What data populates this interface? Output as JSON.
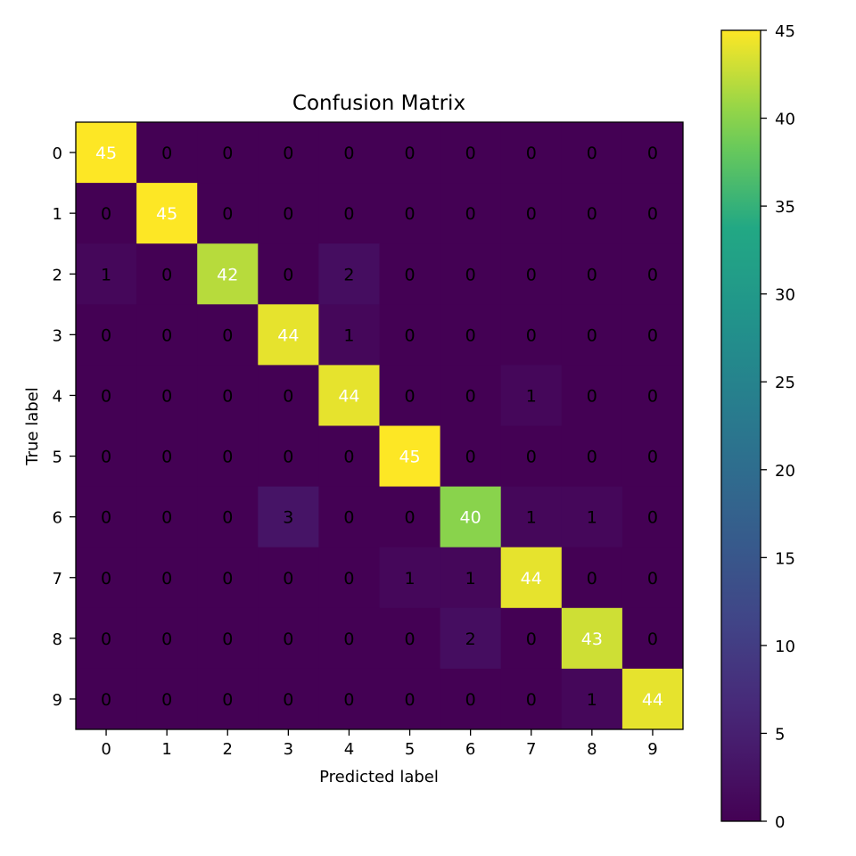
{
  "chart_data": {
    "type": "heatmap",
    "title": "Confusion Matrix",
    "xlabel": "Predicted label",
    "ylabel": "True label",
    "x_categories": [
      "0",
      "1",
      "2",
      "3",
      "4",
      "5",
      "6",
      "7",
      "8",
      "9"
    ],
    "y_categories": [
      "0",
      "1",
      "2",
      "3",
      "4",
      "5",
      "6",
      "7",
      "8",
      "9"
    ],
    "matrix": [
      [
        45,
        0,
        0,
        0,
        0,
        0,
        0,
        0,
        0,
        0
      ],
      [
        0,
        45,
        0,
        0,
        0,
        0,
        0,
        0,
        0,
        0
      ],
      [
        1,
        0,
        42,
        0,
        2,
        0,
        0,
        0,
        0,
        0
      ],
      [
        0,
        0,
        0,
        44,
        1,
        0,
        0,
        0,
        0,
        0
      ],
      [
        0,
        0,
        0,
        0,
        44,
        0,
        0,
        1,
        0,
        0
      ],
      [
        0,
        0,
        0,
        0,
        0,
        45,
        0,
        0,
        0,
        0
      ],
      [
        0,
        0,
        0,
        3,
        0,
        0,
        40,
        1,
        1,
        0
      ],
      [
        0,
        0,
        0,
        0,
        0,
        1,
        1,
        44,
        0,
        0
      ],
      [
        0,
        0,
        0,
        0,
        0,
        0,
        2,
        0,
        43,
        0
      ],
      [
        0,
        0,
        0,
        0,
        0,
        0,
        0,
        0,
        1,
        44
      ]
    ],
    "colormap": "viridis",
    "vmin": 0,
    "vmax": 45,
    "colorbar_ticks": [
      "0",
      "5",
      "10",
      "15",
      "20",
      "25",
      "30",
      "35",
      "40",
      "45"
    ],
    "grid": false,
    "legend": "colorbar-right"
  }
}
